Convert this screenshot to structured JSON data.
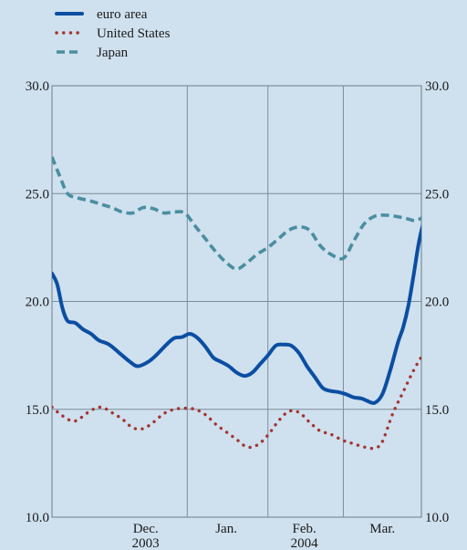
{
  "chart_data": {
    "type": "line",
    "title": "",
    "xlabel": "",
    "ylabel": "",
    "ylim": [
      10,
      30
    ],
    "yticks": [
      "10.0",
      "15.0",
      "20.0",
      "25.0",
      "30.0"
    ],
    "xlim": [
      "2003-11-10",
      "2004-03-31"
    ],
    "x_tick_labels": [
      {
        "top": "Dec.",
        "bottom": "2003",
        "center": "2003-12-16"
      },
      {
        "top": "Jan.",
        "bottom": "",
        "center": "2004-01-16"
      },
      {
        "top": "Feb.",
        "bottom": "2004",
        "center": "2004-02-15"
      },
      {
        "top": "Mar.",
        "bottom": "",
        "center": "2004-03-16"
      }
    ],
    "x_gridlines": [
      "2004-01-01",
      "2004-02-01",
      "2004-03-01"
    ],
    "grid": true,
    "legend_position": "top-left",
    "series": [
      {
        "name": "euro area",
        "color": "#0b4ea2",
        "style": "solid",
        "points": [
          [
            "2003-11-10",
            21.3
          ],
          [
            "2003-11-12",
            20.8
          ],
          [
            "2003-11-14",
            19.7
          ],
          [
            "2003-11-16",
            19.1
          ],
          [
            "2003-11-19",
            19.0
          ],
          [
            "2003-11-22",
            18.7
          ],
          [
            "2003-11-25",
            18.5
          ],
          [
            "2003-11-28",
            18.2
          ],
          [
            "2003-12-02",
            18.0
          ],
          [
            "2003-12-06",
            17.6
          ],
          [
            "2003-12-10",
            17.2
          ],
          [
            "2003-12-13",
            17.0
          ],
          [
            "2003-12-17",
            17.2
          ],
          [
            "2003-12-20",
            17.5
          ],
          [
            "2003-12-24",
            18.0
          ],
          [
            "2003-12-27",
            18.3
          ],
          [
            "2003-12-30",
            18.35
          ],
          [
            "2004-01-02",
            18.5
          ],
          [
            "2004-01-05",
            18.3
          ],
          [
            "2004-01-08",
            17.9
          ],
          [
            "2004-01-11",
            17.4
          ],
          [
            "2004-01-14",
            17.2
          ],
          [
            "2004-01-17",
            17.0
          ],
          [
            "2004-01-20",
            16.7
          ],
          [
            "2004-01-23",
            16.55
          ],
          [
            "2004-01-26",
            16.7
          ],
          [
            "2004-01-29",
            17.1
          ],
          [
            "2004-02-01",
            17.5
          ],
          [
            "2004-02-04",
            17.95
          ],
          [
            "2004-02-07",
            18.0
          ],
          [
            "2004-02-10",
            17.95
          ],
          [
            "2004-02-13",
            17.6
          ],
          [
            "2004-02-16",
            17.0
          ],
          [
            "2004-02-19",
            16.5
          ],
          [
            "2004-02-22",
            16.0
          ],
          [
            "2004-02-25",
            15.85
          ],
          [
            "2004-02-28",
            15.8
          ],
          [
            "2004-03-02",
            15.7
          ],
          [
            "2004-03-05",
            15.55
          ],
          [
            "2004-03-08",
            15.5
          ],
          [
            "2004-03-10",
            15.4
          ],
          [
            "2004-03-13",
            15.3
          ],
          [
            "2004-03-16",
            15.7
          ],
          [
            "2004-03-19",
            16.8
          ],
          [
            "2004-03-22",
            18.1
          ],
          [
            "2004-03-24",
            18.8
          ],
          [
            "2004-03-26",
            19.8
          ],
          [
            "2004-03-28",
            21.2
          ],
          [
            "2004-03-30",
            22.7
          ],
          [
            "2004-04-01",
            23.7
          ],
          [
            "2004-04-03",
            23.9
          ],
          [
            "2004-04-05",
            23.5
          ],
          [
            "2004-04-07",
            23.0
          ]
        ]
      },
      {
        "name": "United States",
        "color": "#a3332f",
        "style": "dotted",
        "points": [
          [
            "2003-11-10",
            15.1
          ],
          [
            "2003-11-14",
            14.7
          ],
          [
            "2003-11-18",
            14.45
          ],
          [
            "2003-11-21",
            14.6
          ],
          [
            "2003-11-25",
            14.95
          ],
          [
            "2003-11-29",
            15.1
          ],
          [
            "2003-12-03",
            14.85
          ],
          [
            "2003-12-07",
            14.55
          ],
          [
            "2003-12-11",
            14.15
          ],
          [
            "2003-12-15",
            14.1
          ],
          [
            "2003-12-19",
            14.4
          ],
          [
            "2003-12-23",
            14.8
          ],
          [
            "2003-12-27",
            15.0
          ],
          [
            "2003-12-31",
            15.05
          ],
          [
            "2004-01-04",
            15.0
          ],
          [
            "2004-01-08",
            14.75
          ],
          [
            "2004-01-12",
            14.3
          ],
          [
            "2004-01-16",
            13.95
          ],
          [
            "2004-01-20",
            13.6
          ],
          [
            "2004-01-24",
            13.25
          ],
          [
            "2004-01-28",
            13.35
          ],
          [
            "2004-02-01",
            13.8
          ],
          [
            "2004-02-05",
            14.45
          ],
          [
            "2004-02-09",
            14.9
          ],
          [
            "2004-02-13",
            14.85
          ],
          [
            "2004-02-17",
            14.4
          ],
          [
            "2004-02-21",
            14.0
          ],
          [
            "2004-02-25",
            13.85
          ],
          [
            "2004-03-01",
            13.55
          ],
          [
            "2004-03-05",
            13.4
          ],
          [
            "2004-03-09",
            13.25
          ],
          [
            "2004-03-13",
            13.2
          ],
          [
            "2004-03-16",
            13.5
          ],
          [
            "2004-03-20",
            14.8
          ],
          [
            "2004-03-24",
            15.8
          ],
          [
            "2004-03-28",
            16.8
          ],
          [
            "2004-04-01",
            17.6
          ],
          [
            "2004-04-03",
            17.7
          ],
          [
            "2004-04-05",
            17.2
          ],
          [
            "2004-04-07",
            16.4
          ]
        ]
      },
      {
        "name": "Japan",
        "color": "#4a8ea0",
        "style": "dashed",
        "points": [
          [
            "2003-11-10",
            26.7
          ],
          [
            "2003-11-13",
            25.8
          ],
          [
            "2003-11-16",
            25.0
          ],
          [
            "2003-11-20",
            24.8
          ],
          [
            "2003-11-25",
            24.65
          ],
          [
            "2003-11-29",
            24.5
          ],
          [
            "2003-12-03",
            24.35
          ],
          [
            "2003-12-07",
            24.15
          ],
          [
            "2003-12-11",
            24.1
          ],
          [
            "2003-12-15",
            24.35
          ],
          [
            "2003-12-19",
            24.3
          ],
          [
            "2003-12-23",
            24.1
          ],
          [
            "2003-12-27",
            24.15
          ],
          [
            "2003-12-31",
            24.1
          ],
          [
            "2004-01-04",
            23.5
          ],
          [
            "2004-01-08",
            22.9
          ],
          [
            "2004-01-12",
            22.3
          ],
          [
            "2004-01-16",
            21.8
          ],
          [
            "2004-01-20",
            21.5
          ],
          [
            "2004-01-24",
            21.8
          ],
          [
            "2004-01-28",
            22.2
          ],
          [
            "2004-02-01",
            22.5
          ],
          [
            "2004-02-05",
            22.9
          ],
          [
            "2004-02-09",
            23.3
          ],
          [
            "2004-02-13",
            23.45
          ],
          [
            "2004-02-17",
            23.3
          ],
          [
            "2004-02-21",
            22.6
          ],
          [
            "2004-02-25",
            22.2
          ],
          [
            "2004-03-01",
            22.0
          ],
          [
            "2004-03-05",
            22.8
          ],
          [
            "2004-03-09",
            23.6
          ],
          [
            "2004-03-13",
            23.95
          ],
          [
            "2004-03-17",
            24.0
          ],
          [
            "2004-03-21",
            23.95
          ],
          [
            "2004-03-25",
            23.85
          ],
          [
            "2004-03-29",
            23.75
          ],
          [
            "2004-04-02",
            24.0
          ],
          [
            "2004-04-07",
            24.05
          ]
        ]
      }
    ]
  }
}
